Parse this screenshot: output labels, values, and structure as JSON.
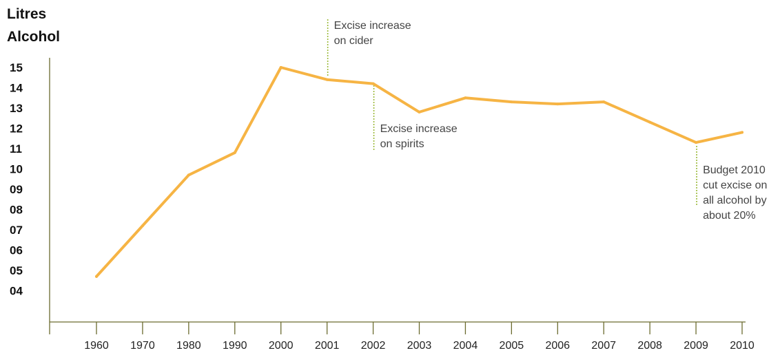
{
  "chart_data": {
    "type": "line",
    "ylabel_lines": [
      "Litres",
      "Alcohol"
    ],
    "y_ticks": [
      "15",
      "14",
      "13",
      "12",
      "11",
      "10",
      "09",
      "08",
      "07",
      "06",
      "05",
      "04"
    ],
    "ylim": [
      3,
      15.5
    ],
    "categories": [
      "1960",
      "1970",
      "1980",
      "1990",
      "2000",
      "2001",
      "2002",
      "2003",
      "2004",
      "2005",
      "2006",
      "2007",
      "2008",
      "2009",
      "2010"
    ],
    "values": [
      4.7,
      7.2,
      9.7,
      10.8,
      15.0,
      14.4,
      14.2,
      12.8,
      13.5,
      13.3,
      13.2,
      13.3,
      12.3,
      11.3,
      11.8
    ],
    "annotations": [
      {
        "category": "2001",
        "lines": [
          "Excise increase",
          "on cider"
        ]
      },
      {
        "category": "2002",
        "lines": [
          "Excise increase",
          "on spirits"
        ]
      },
      {
        "category": "2009",
        "lines": [
          "Budget 2010",
          "cut excise on",
          "all alcohol by",
          "about 20%"
        ]
      }
    ],
    "colors": {
      "line": "#f6b444",
      "axis": "#6b6b2f",
      "annotation_leader": "#9ab837"
    }
  }
}
